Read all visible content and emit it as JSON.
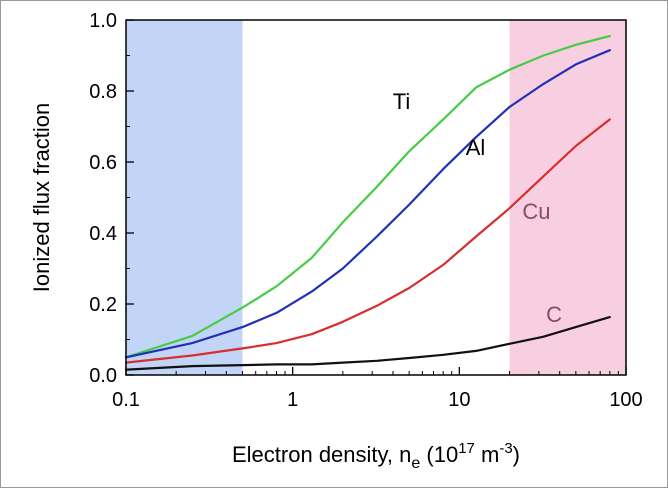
{
  "chart_data": {
    "type": "line",
    "xscale": "log",
    "xlim": [
      0.1,
      100
    ],
    "ylim": [
      0.0,
      1.0
    ],
    "x_ticks": [
      "0.1",
      "1",
      "10",
      "100"
    ],
    "y_ticks": [
      "0.0",
      "0.2",
      "0.4",
      "0.6",
      "0.8",
      "1.0"
    ],
    "xlabel": {
      "prefix": "Electron density, n",
      "sub": "e",
      "mid": " (10",
      "sup1": "17",
      "mid2": " m",
      "sup2": "-3",
      "suffix": ")"
    },
    "ylabel": "Ionized flux fraction",
    "shaded_regions": [
      {
        "x": [
          0.1,
          0.5
        ],
        "color": "#c3d5f6"
      },
      {
        "x": [
          20,
          100
        ],
        "color": "#f8cfe0"
      }
    ],
    "series": [
      {
        "name": "Ti",
        "x": [
          0.1,
          0.25,
          0.5,
          0.8,
          1.3,
          2,
          3.2,
          5,
          8,
          12.6,
          20,
          32,
          50,
          80
        ],
        "y": [
          0.05,
          0.11,
          0.19,
          0.25,
          0.33,
          0.43,
          0.53,
          0.63,
          0.72,
          0.81,
          0.86,
          0.9,
          0.93,
          0.955
        ],
        "color": "#46cc46"
      },
      {
        "name": "Al",
        "x": [
          0.1,
          0.25,
          0.5,
          0.8,
          1.3,
          2,
          3.2,
          5,
          8,
          12.6,
          20,
          32,
          50,
          80
        ],
        "y": [
          0.05,
          0.09,
          0.135,
          0.175,
          0.235,
          0.3,
          0.39,
          0.48,
          0.58,
          0.67,
          0.755,
          0.82,
          0.875,
          0.915
        ],
        "color": "#2030b8"
      },
      {
        "name": "Cu",
        "x": [
          0.1,
          0.25,
          0.5,
          0.8,
          1.3,
          2,
          3.2,
          5,
          8,
          12.6,
          20,
          32,
          50,
          80
        ],
        "y": [
          0.035,
          0.055,
          0.075,
          0.09,
          0.115,
          0.15,
          0.195,
          0.245,
          0.31,
          0.39,
          0.47,
          0.56,
          0.645,
          0.72
        ],
        "color": "#d82e2e"
      },
      {
        "name": "C",
        "x": [
          0.1,
          0.25,
          0.5,
          0.8,
          1.3,
          2,
          3.2,
          5,
          8,
          12.6,
          20,
          32,
          50,
          80
        ],
        "y": [
          0.015,
          0.025,
          0.028,
          0.03,
          0.03,
          0.035,
          0.04,
          0.048,
          0.057,
          0.068,
          0.088,
          0.108,
          0.135,
          0.163
        ],
        "color": "#111111"
      }
    ],
    "annotations": [
      {
        "text": "Ti",
        "color": "#000000",
        "x": 4.5,
        "y": 0.75
      },
      {
        "text": "Al",
        "color": "#000000",
        "x": 12.5,
        "y": 0.62
      },
      {
        "text": "Cu",
        "color": "#8a4a6a",
        "x": 29,
        "y": 0.44
      },
      {
        "text": "C",
        "color": "#8a4a6a",
        "x": 37,
        "y": 0.15
      }
    ]
  }
}
